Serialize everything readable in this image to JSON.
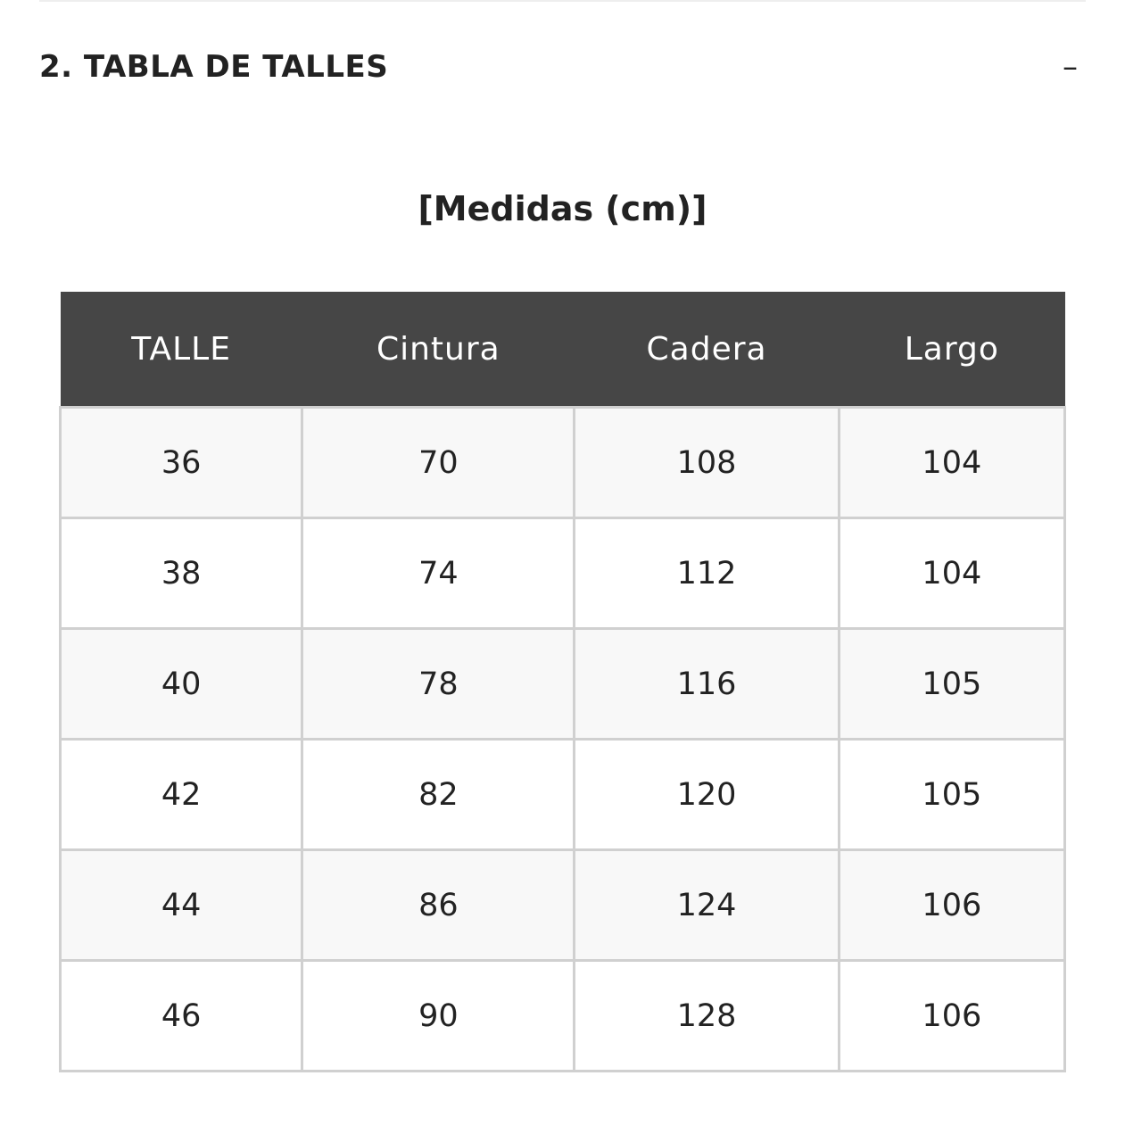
{
  "section": {
    "title": "2. TABLA DE TALLES",
    "toggle": "–"
  },
  "subtitle": "[Medidas (cm)]",
  "table": {
    "headers": [
      "TALLE",
      "Cintura",
      "Cadera",
      "Largo"
    ],
    "rows": [
      [
        "36",
        "70",
        "108",
        "104"
      ],
      [
        "38",
        "74",
        "112",
        "104"
      ],
      [
        "40",
        "78",
        "116",
        "105"
      ],
      [
        "42",
        "82",
        "120",
        "105"
      ],
      [
        "44",
        "86",
        "124",
        "106"
      ],
      [
        "46",
        "90",
        "128",
        "106"
      ]
    ]
  },
  "colors": {
    "header_bg": "#464646",
    "border": "#d0d0d0",
    "row_bg": "#f8f8f8"
  }
}
